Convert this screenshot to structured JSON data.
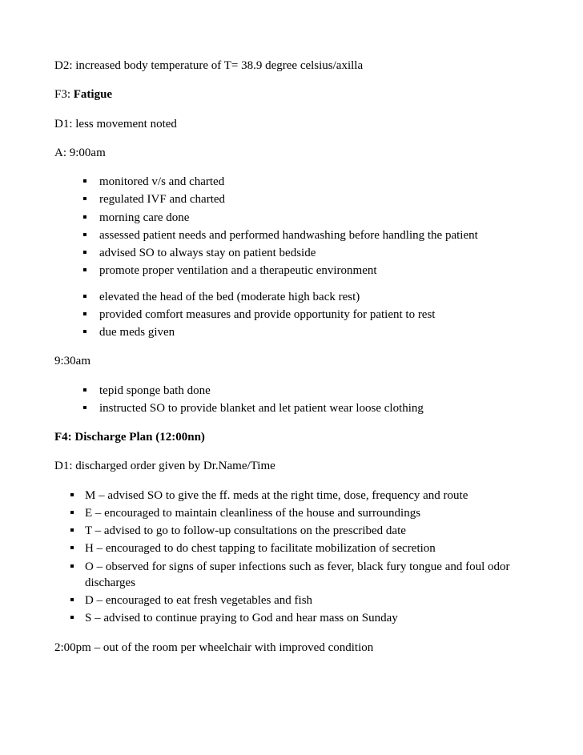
{
  "p_d2": "D2: increased body temperature of T= 38.9 degree celsius/axilla",
  "p_f3_prefix": "F3: ",
  "p_f3_bold": "Fatigue",
  "p_d1a": "D1: less movement noted",
  "p_a": "A: 9:00am",
  "list1": {
    "i0": "monitored v/s and charted",
    "i1": "regulated IVF and charted",
    "i2": "morning care done",
    "i3": "assessed patient needs and performed handwashing before handling the patient",
    "i4": "advised SO to always stay on patient bedside",
    "i5": "promote proper ventilation and a therapeutic environment",
    "i6": "elevated the head of the bed (moderate high back rest)",
    "i7": "provided comfort measures and provide opportunity for patient to rest",
    "i8": "due meds given"
  },
  "p_930": "9:30am",
  "list2": {
    "i0": "tepid sponge bath done",
    "i1": "instructed SO to provide blanket and let patient wear loose clothing"
  },
  "p_f4": "F4: Discharge Plan (12:00nn)",
  "p_d1b": "D1: discharged order given by Dr.Name/Time",
  "list3": {
    "i0": "M – advised SO to give the ff. meds at the right time, dose, frequency and route",
    "i1": "E – encouraged to maintain cleanliness of the house and surroundings",
    "i2": "T – advised to go to follow-up consultations on the prescribed date",
    "i3": "H – encouraged to do chest tapping to facilitate mobilization of secretion",
    "i4": "O – observed for signs of super infections such as fever, black fury tongue and foul odor discharges",
    "i5": "D – encouraged to eat fresh vegetables and fish",
    "i6": "S – advised to continue praying to God and hear mass on Sunday"
  },
  "p_2pm": "2:00pm – out of the room per wheelchair with improved condition"
}
